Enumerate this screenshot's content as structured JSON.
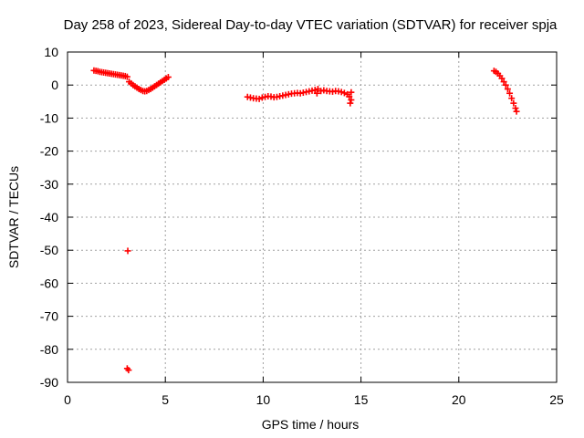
{
  "chart_data": {
    "type": "scatter",
    "title": "Day 258 of 2023, Sidereal Day-to-day VTEC variation (SDTVAR) for receiver spja",
    "xlabel": "GPS time / hours",
    "ylabel": "SDTVAR / TECUs",
    "xlim": [
      0,
      25
    ],
    "ylim": [
      -90,
      10
    ],
    "xticks": [
      0,
      5,
      10,
      15,
      20,
      25
    ],
    "yticks": [
      10,
      0,
      -10,
      -20,
      -30,
      -40,
      -50,
      -60,
      -70,
      -80,
      -90
    ],
    "grid": true,
    "marker": "+",
    "series": [
      {
        "name": "SDTVAR",
        "color": "#ff0000",
        "points": [
          [
            1.35,
            4.4
          ],
          [
            1.45,
            4.3
          ],
          [
            1.55,
            4.2
          ],
          [
            1.65,
            4.0
          ],
          [
            1.75,
            3.9
          ],
          [
            1.85,
            3.8
          ],
          [
            1.95,
            3.7
          ],
          [
            2.05,
            3.6
          ],
          [
            2.15,
            3.5
          ],
          [
            2.25,
            3.4
          ],
          [
            2.35,
            3.3
          ],
          [
            2.45,
            3.2
          ],
          [
            2.55,
            3.1
          ],
          [
            2.65,
            3.0
          ],
          [
            2.75,
            2.9
          ],
          [
            2.85,
            2.8
          ],
          [
            2.95,
            2.7
          ],
          [
            3.05,
            2.5
          ],
          [
            3.15,
            1.0
          ],
          [
            3.25,
            0.5
          ],
          [
            3.35,
            0.0
          ],
          [
            3.45,
            -0.4
          ],
          [
            3.55,
            -0.8
          ],
          [
            3.65,
            -1.2
          ],
          [
            3.75,
            -1.5
          ],
          [
            3.85,
            -1.8
          ],
          [
            3.95,
            -1.9
          ],
          [
            4.05,
            -1.8
          ],
          [
            4.15,
            -1.5
          ],
          [
            4.25,
            -1.2
          ],
          [
            4.35,
            -0.8
          ],
          [
            4.45,
            -0.4
          ],
          [
            4.55,
            0.0
          ],
          [
            4.65,
            0.4
          ],
          [
            4.75,
            0.8
          ],
          [
            4.85,
            1.2
          ],
          [
            4.95,
            1.6
          ],
          [
            5.05,
            2.0
          ],
          [
            5.15,
            2.4
          ],
          [
            3.08,
            -50.2
          ],
          [
            3.05,
            -85.8
          ],
          [
            3.12,
            -86.3
          ],
          [
            9.2,
            -3.6
          ],
          [
            9.35,
            -3.8
          ],
          [
            9.5,
            -4.0
          ],
          [
            9.65,
            -4.1
          ],
          [
            9.8,
            -4.2
          ],
          [
            9.95,
            -3.8
          ],
          [
            10.1,
            -3.6
          ],
          [
            10.25,
            -3.4
          ],
          [
            10.4,
            -3.5
          ],
          [
            10.55,
            -3.7
          ],
          [
            10.7,
            -3.6
          ],
          [
            10.85,
            -3.4
          ],
          [
            11.0,
            -3.2
          ],
          [
            11.15,
            -3.0
          ],
          [
            11.3,
            -2.8
          ],
          [
            11.45,
            -2.6
          ],
          [
            11.6,
            -2.5
          ],
          [
            11.75,
            -2.4
          ],
          [
            11.9,
            -2.5
          ],
          [
            12.05,
            -2.3
          ],
          [
            12.2,
            -2.1
          ],
          [
            12.35,
            -1.9
          ],
          [
            12.5,
            -1.7
          ],
          [
            12.65,
            -1.5
          ],
          [
            12.8,
            -1.2
          ],
          [
            12.95,
            -1.8
          ],
          [
            12.75,
            -2.5
          ],
          [
            13.1,
            -1.6
          ],
          [
            13.25,
            -1.8
          ],
          [
            13.4,
            -1.9
          ],
          [
            13.55,
            -2.0
          ],
          [
            13.7,
            -1.8
          ],
          [
            13.85,
            -1.9
          ],
          [
            14.0,
            -2.1
          ],
          [
            14.15,
            -2.4
          ],
          [
            14.3,
            -2.8
          ],
          [
            14.4,
            -3.5
          ],
          [
            14.5,
            -4.5
          ],
          [
            14.45,
            -5.5
          ],
          [
            14.5,
            -2.2
          ],
          [
            21.8,
            4.3
          ],
          [
            21.9,
            4.0
          ],
          [
            22.0,
            3.5
          ],
          [
            22.1,
            2.8
          ],
          [
            22.2,
            2.0
          ],
          [
            22.3,
            1.0
          ],
          [
            22.4,
            0.0
          ],
          [
            22.5,
            -1.2
          ],
          [
            22.6,
            -2.5
          ],
          [
            22.7,
            -4.0
          ],
          [
            22.8,
            -5.5
          ],
          [
            22.9,
            -7.0
          ],
          [
            22.95,
            -8.0
          ]
        ]
      }
    ]
  }
}
